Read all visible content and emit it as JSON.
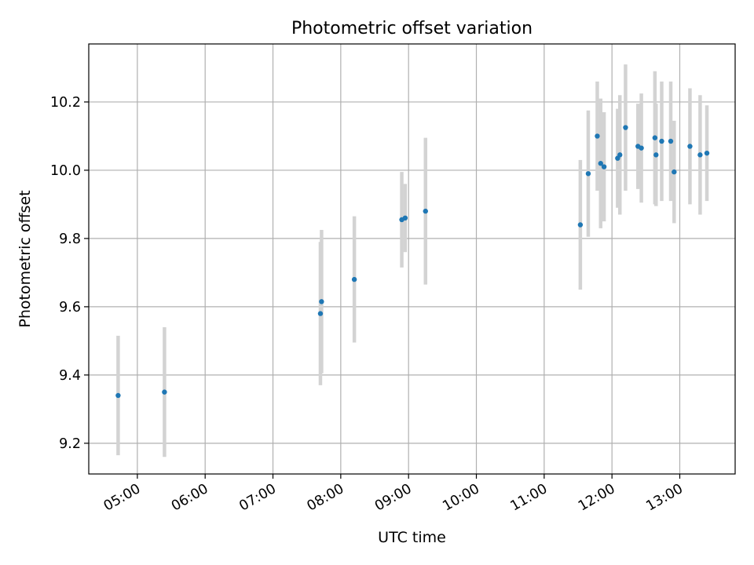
{
  "chart_data": {
    "type": "scatter",
    "title": "Photometric offset variation",
    "xlabel": "UTC time",
    "ylabel": "Photometric offset",
    "x_ticks": [
      "05:00",
      "06:00",
      "07:00",
      "08:00",
      "09:00",
      "10:00",
      "11:00",
      "12:00",
      "13:00"
    ],
    "y_ticks": [
      "9.2",
      "9.4",
      "9.6",
      "9.8",
      "10.0",
      "10.2"
    ],
    "xlim": [
      "04:17",
      "13:49"
    ],
    "ylim": [
      9.11,
      10.37
    ],
    "grid": true,
    "colors": {
      "point": "#1f77b4",
      "errorbar": "#d3d3d3",
      "grid": "#b0b0b0"
    },
    "series": [
      {
        "points": [
          {
            "x": "04:43",
            "y": 9.34,
            "yerr": 0.175
          },
          {
            "x": "05:24",
            "y": 9.35,
            "yerr": 0.19
          },
          {
            "x": "07:42",
            "y": 9.58,
            "yerr": 0.21
          },
          {
            "x": "07:43",
            "y": 9.615,
            "yerr": 0.21
          },
          {
            "x": "08:12",
            "y": 9.68,
            "yerr": 0.185
          },
          {
            "x": "08:54",
            "y": 9.855,
            "yerr": 0.14
          },
          {
            "x": "08:57",
            "y": 9.86,
            "yerr": 0.1
          },
          {
            "x": "09:15",
            "y": 9.88,
            "yerr": 0.215
          },
          {
            "x": "11:32",
            "y": 9.84,
            "yerr": 0.19
          },
          {
            "x": "11:39",
            "y": 9.99,
            "yerr": 0.185
          },
          {
            "x": "11:47",
            "y": 10.1,
            "yerr": 0.16
          },
          {
            "x": "11:50",
            "y": 10.02,
            "yerr": 0.19
          },
          {
            "x": "11:53",
            "y": 10.01,
            "yerr": 0.16
          },
          {
            "x": "12:05",
            "y": 10.035,
            "yerr": 0.145
          },
          {
            "x": "12:07",
            "y": 10.045,
            "yerr": 0.175
          },
          {
            "x": "12:12",
            "y": 10.125,
            "yerr": 0.185
          },
          {
            "x": "12:23",
            "y": 10.07,
            "yerr": 0.125
          },
          {
            "x": "12:26",
            "y": 10.065,
            "yerr": 0.16
          },
          {
            "x": "12:38",
            "y": 10.095,
            "yerr": 0.195
          },
          {
            "x": "12:39",
            "y": 10.045,
            "yerr": 0.15
          },
          {
            "x": "12:44",
            "y": 10.085,
            "yerr": 0.175
          },
          {
            "x": "12:52",
            "y": 10.085,
            "yerr": 0.175
          },
          {
            "x": "12:55",
            "y": 9.995,
            "yerr": 0.15
          },
          {
            "x": "13:09",
            "y": 10.07,
            "yerr": 0.17
          },
          {
            "x": "13:18",
            "y": 10.045,
            "yerr": 0.175
          },
          {
            "x": "13:24",
            "y": 10.05,
            "yerr": 0.14
          }
        ]
      }
    ]
  }
}
